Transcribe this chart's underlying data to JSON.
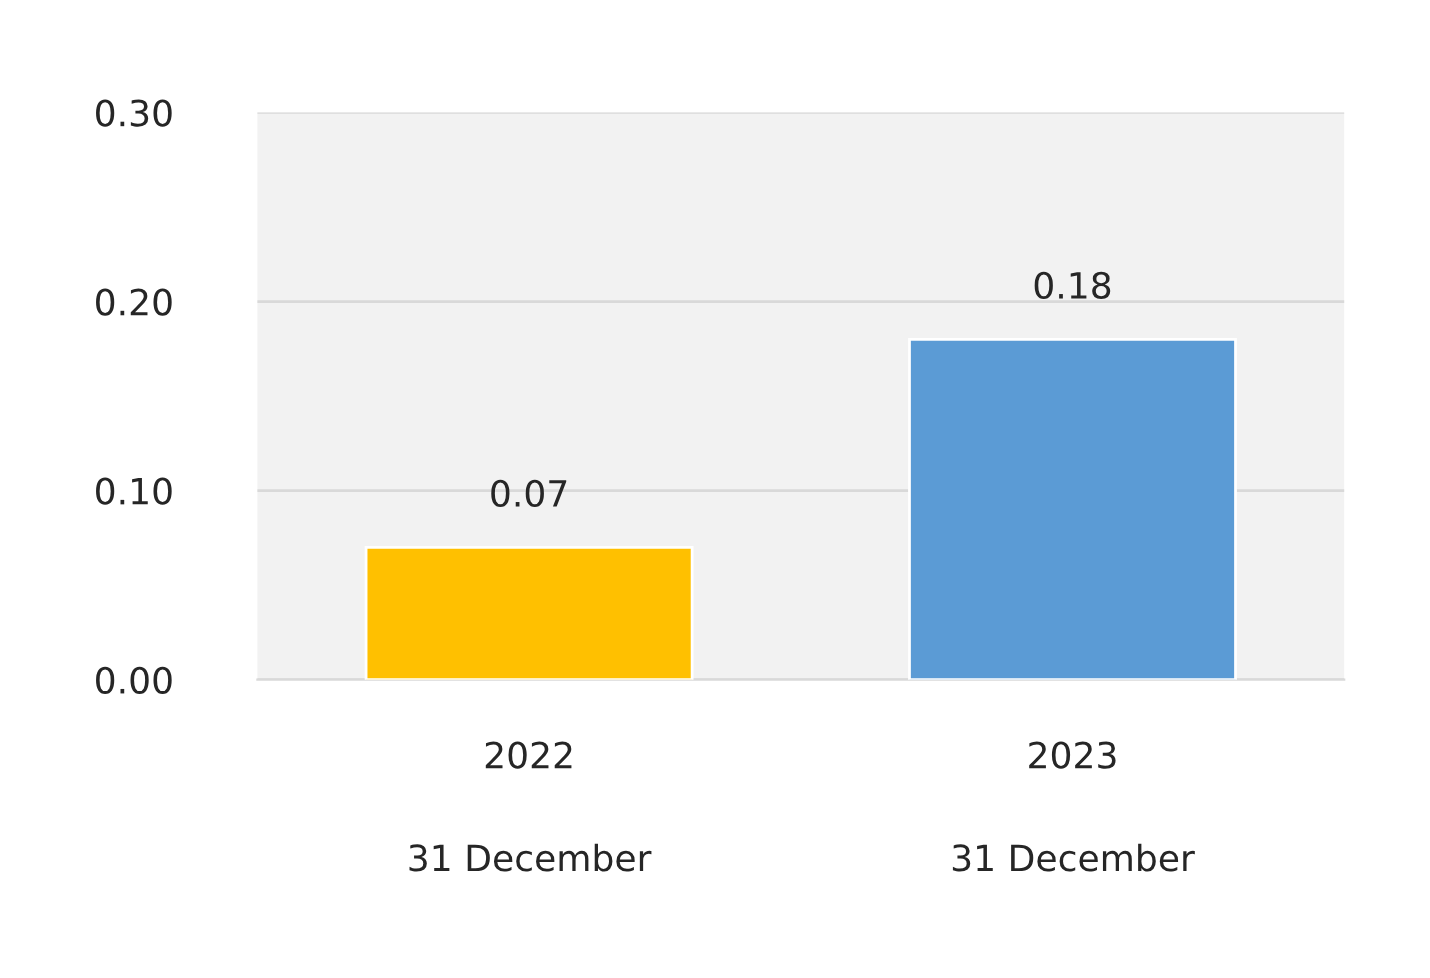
{
  "chart_data": {
    "type": "bar",
    "categories": [
      "2022\n\n31 December",
      "2023\n\n31 December"
    ],
    "values": [
      0.07,
      0.18
    ],
    "colors": [
      "#ffc000",
      "#5b9bd5"
    ],
    "ylim": [
      0,
      0.3
    ],
    "yticks": [
      {
        "value": 0,
        "label": "0.00"
      },
      {
        "value": 0.1,
        "label": "0.10"
      },
      {
        "value": 0.2,
        "label": "0.20"
      },
      {
        "value": 0.3,
        "label": "0.30"
      }
    ],
    "grid": "y",
    "data_labels": true
  }
}
